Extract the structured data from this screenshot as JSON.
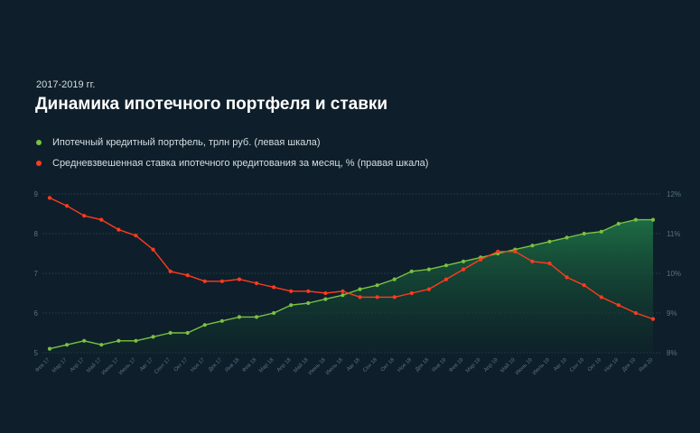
{
  "header": {
    "subtitle": "2017-2019 гг.",
    "title": "Динамика ипотечного портфеля и ставки"
  },
  "legend": {
    "items": [
      {
        "label": "Ипотечный кредитный портфель, трлн руб. (левая шкала)",
        "color": "#7ac142"
      },
      {
        "label": "Средневзвешенная ставка ипотечного кредитования за месяц, % (правая шкала)",
        "color": "#ff3b1f"
      }
    ]
  },
  "chart_data": {
    "type": "line",
    "categories": [
      "Фев 17",
      "Мар 17",
      "Апр 17",
      "Май 17",
      "Июнь 17",
      "Июль 17",
      "Авг 17",
      "Сент 17",
      "Окт 17",
      "Ноя 17",
      "Дек 17",
      "Янв 18",
      "Фев 18",
      "Мар 18",
      "Апр 18",
      "Май 18",
      "Июнь 18",
      "Июль 18",
      "Авг 18",
      "Сен 18",
      "Окт 18",
      "Ноя 18",
      "Дек 18",
      "Янв 19",
      "Фев 19",
      "Мар 19",
      "Апр 19",
      "Май 19",
      "Июнь 19",
      "Июль 19",
      "Авг 19",
      "Сен 19",
      "Окт 19",
      "Ноя 19",
      "Дек 19",
      "Янв 20"
    ],
    "series": [
      {
        "name": "Ипотечный кредитный портфель, трлн руб. (левая шкала)",
        "axis": "left",
        "color": "#7ac142",
        "area": true,
        "values": [
          5.1,
          5.2,
          5.3,
          5.2,
          5.3,
          5.3,
          5.4,
          5.5,
          5.5,
          5.7,
          5.8,
          5.9,
          5.9,
          6.0,
          6.2,
          6.25,
          6.35,
          6.45,
          6.6,
          6.7,
          6.85,
          7.05,
          7.1,
          7.2,
          7.3,
          7.4,
          7.5,
          7.6,
          7.7,
          7.8,
          7.9,
          8.0,
          8.05,
          8.25,
          8.35,
          8.35
        ]
      },
      {
        "name": "Средневзвешенная ставка ипотечного кредитования за месяц, % (правая шкала)",
        "axis": "right",
        "color": "#ff3b1f",
        "area": false,
        "values": [
          11.9,
          11.7,
          11.45,
          11.35,
          11.1,
          10.95,
          10.6,
          10.05,
          9.95,
          9.8,
          9.8,
          9.85,
          9.75,
          9.65,
          9.55,
          9.55,
          9.5,
          9.55,
          9.4,
          9.4,
          9.4,
          9.5,
          9.6,
          9.85,
          10.1,
          10.35,
          10.55,
          10.55,
          10.3,
          10.25,
          9.9,
          9.7,
          9.4,
          9.2,
          9.0,
          8.85
        ]
      }
    ],
    "y_left": {
      "ticks": [
        "5",
        "6",
        "7",
        "8",
        "9"
      ],
      "range": [
        5,
        9
      ]
    },
    "y_right": {
      "ticks": [
        "8%",
        "9%",
        "10%",
        "11%",
        "12%"
      ],
      "range": [
        8,
        12
      ]
    },
    "grid": true,
    "legend_position": "top-left"
  }
}
